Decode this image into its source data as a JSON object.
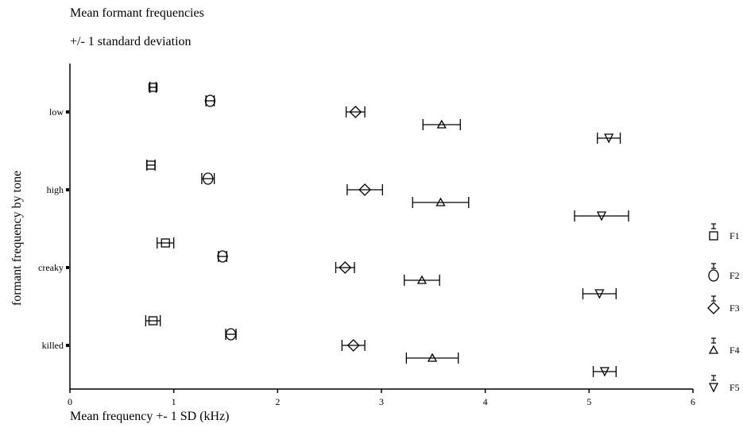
{
  "chart_data": {
    "type": "scatter",
    "title": "Mean formant frequencies",
    "subtitle": "+/- 1 standard deviation",
    "xlabel": "Mean frequency +- 1 SD (kHz)",
    "ylabel": "formant frequency by tone",
    "xlim": [
      0,
      6
    ],
    "x_ticks": [
      "0",
      "1",
      "2",
      "3",
      "4",
      "5",
      "6"
    ],
    "categories": [
      "low",
      "high",
      "creaky",
      "killed"
    ],
    "legend_position": "right",
    "series": [
      {
        "name": "F1",
        "marker": "square",
        "points": [
          {
            "category": "low",
            "mean": 0.8,
            "sd": 0.03
          },
          {
            "category": "high",
            "mean": 0.78,
            "sd": 0.04
          },
          {
            "category": "creaky",
            "mean": 0.92,
            "sd": 0.08
          },
          {
            "category": "killed",
            "mean": 0.8,
            "sd": 0.07
          }
        ]
      },
      {
        "name": "F2",
        "marker": "circle",
        "points": [
          {
            "category": "low",
            "mean": 1.35,
            "sd": 0.04
          },
          {
            "category": "high",
            "mean": 1.33,
            "sd": 0.06
          },
          {
            "category": "creaky",
            "mean": 1.47,
            "sd": 0.04
          },
          {
            "category": "killed",
            "mean": 1.55,
            "sd": 0.05
          }
        ]
      },
      {
        "name": "F3",
        "marker": "diamond",
        "points": [
          {
            "category": "low",
            "mean": 2.75,
            "sd": 0.09
          },
          {
            "category": "high",
            "mean": 2.84,
            "sd": 0.17
          },
          {
            "category": "creaky",
            "mean": 2.65,
            "sd": 0.09
          },
          {
            "category": "killed",
            "mean": 2.73,
            "sd": 0.11
          }
        ]
      },
      {
        "name": "F4",
        "marker": "triangle-up",
        "points": [
          {
            "category": "low",
            "mean": 3.58,
            "sd": 0.18
          },
          {
            "category": "high",
            "mean": 3.57,
            "sd": 0.27
          },
          {
            "category": "creaky",
            "mean": 3.39,
            "sd": 0.17
          },
          {
            "category": "killed",
            "mean": 3.49,
            "sd": 0.25
          }
        ]
      },
      {
        "name": "F5",
        "marker": "triangle-down",
        "points": [
          {
            "category": "low",
            "mean": 5.19,
            "sd": 0.11
          },
          {
            "category": "high",
            "mean": 5.12,
            "sd": 0.26
          },
          {
            "category": "creaky",
            "mean": 5.1,
            "sd": 0.16
          },
          {
            "category": "killed",
            "mean": 5.15,
            "sd": 0.11
          }
        ]
      }
    ]
  }
}
